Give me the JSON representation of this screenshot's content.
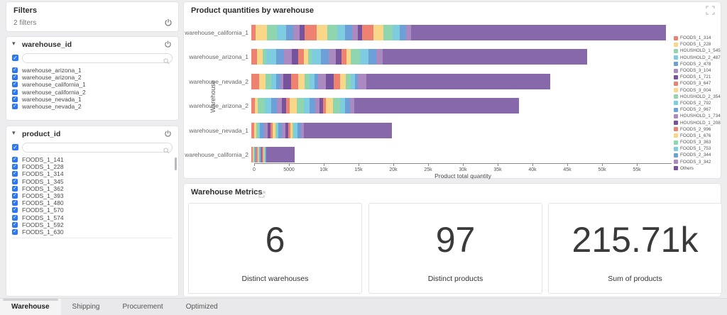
{
  "sidebar": {
    "filters_title": "Filters",
    "filters_count": "2 filters",
    "sections": [
      {
        "name": "warehouse_id",
        "items": [
          "warehouse_arizona_1",
          "warehouse_arizona_2",
          "warehouse_california_1",
          "warehouse_california_2",
          "warehouse_nevada_1",
          "warehouse_nevada_2"
        ]
      },
      {
        "name": "product_id",
        "items": [
          "FOODS_1_141",
          "FOODS_1_228",
          "FOODS_1_314",
          "FOODS_1_345",
          "FOODS_1_362",
          "FOODS_1_393",
          "FOODS_1_480",
          "FOODS_1_570",
          "FOODS_1_574",
          "FOODS_1_592",
          "FOODS_1_630"
        ]
      }
    ],
    "search_value": ""
  },
  "chart_data": {
    "type": "stacked_bar_horizontal",
    "title": "Product quantities by warehouse",
    "xlabel": "Product total quantity",
    "ylabel": "Warehouse",
    "xlim": [
      0,
      60000
    ],
    "x_tick_step": 5000,
    "x_tick_labels": [
      "0",
      "5000",
      "10k",
      "15k",
      "20k",
      "25k",
      "30k",
      "35k",
      "40k",
      "45k",
      "50k",
      "55k"
    ],
    "categories": [
      "warehouse_california_1",
      "warehouse_arizona_1",
      "warehouse_nevada_2",
      "warehouse_arizona_2",
      "warehouse_nevada_1",
      "warehouse_california_2"
    ],
    "totals": [
      59600,
      48300,
      43000,
      38500,
      20200,
      6200
    ],
    "top_products_subtotal": [
      23000,
      18900,
      16500,
      14800,
      7600,
      2200
    ],
    "others_values": [
      36600,
      29400,
      26500,
      23700,
      12600,
      4000
    ],
    "legend": [
      "FOODS_1_314",
      "FOODS_1_228",
      "HOUSHOLD_1_545",
      "HOUSHOLD_2_487",
      "FOODS_2_478",
      "FOODS_3_104",
      "FOODS_1_721",
      "FOODS_3_647",
      "FOODS_3_004",
      "HOUSHOLD_2_354",
      "FOODS_2_792",
      "FOODS_2_967",
      "HOUSHOLD_1_734",
      "HOUSHOLD_1_208",
      "FOODS_2_996",
      "FOODS_1_676",
      "FOODS_3_363",
      "FOODS_1_753",
      "FOODS_2_344",
      "FOODS_3_342",
      "Others"
    ],
    "palette": [
      "#ee8270",
      "#fad688",
      "#8fd5ae",
      "#7dcce0",
      "#6d9fd8",
      "#aa8ac0",
      "#77539e"
    ],
    "others_color": "#8768aa",
    "legend_position": "right"
  },
  "metrics": {
    "title": "Warehouse Metrics",
    "cards": [
      {
        "value": "6",
        "label": "Distinct warehouses"
      },
      {
        "value": "97",
        "label": "Distinct products"
      },
      {
        "value": "215.71k",
        "label": "Sum of products"
      }
    ]
  },
  "tabs": {
    "items": [
      "Warehouse",
      "Shipping",
      "Procurement",
      "Optimized"
    ],
    "active": "Warehouse"
  },
  "icons": {
    "checkbox_check": "✓",
    "chevron_down": "▾",
    "legend_next": "›"
  },
  "colors": {
    "checkbox_blue": "#2e77f2",
    "page_bg": "#ededef",
    "card_border": "#e4e4e7"
  }
}
